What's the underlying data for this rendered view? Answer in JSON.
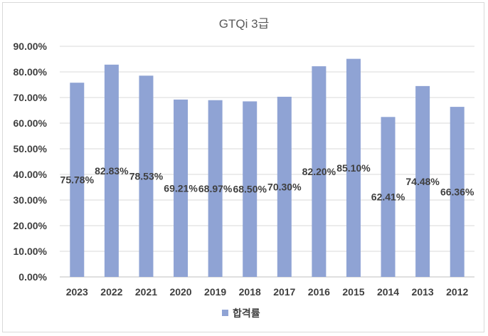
{
  "chart_data": {
    "type": "bar",
    "title": "GTQi 3급",
    "categories": [
      "2023",
      "2022",
      "2021",
      "2020",
      "2019",
      "2018",
      "2017",
      "2016",
      "2015",
      "2014",
      "2013",
      "2012"
    ],
    "series": [
      {
        "name": "합격률",
        "values": [
          75.78,
          82.83,
          78.53,
          69.21,
          68.97,
          68.5,
          70.3,
          82.2,
          85.1,
          62.41,
          74.48,
          66.36
        ],
        "labels": [
          "75.78%",
          "82.83%",
          "78.53%",
          "69.21%",
          "68.97%",
          "68.50%",
          "70.30%",
          "82.20%",
          "85.10%",
          "62.41%",
          "74.48%",
          "66.36%"
        ],
        "color": "#8fa3d4"
      }
    ],
    "y_ticks": [
      "0.00%",
      "10.00%",
      "20.00%",
      "30.00%",
      "40.00%",
      "50.00%",
      "60.00%",
      "70.00%",
      "80.00%",
      "90.00%"
    ],
    "ylim": [
      0,
      90
    ],
    "grid": true,
    "legend_position": "bottom"
  },
  "colors": {
    "grid": "#d9d9d9",
    "axis": "#bfbfbf"
  }
}
